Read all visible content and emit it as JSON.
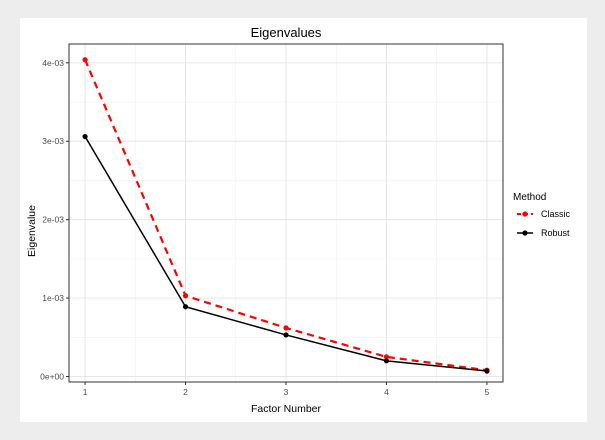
{
  "chart_data": {
    "type": "line",
    "title": "Eigenvalues",
    "xlabel": "Factor Number",
    "ylabel": "Eigenvalue",
    "x": [
      1,
      2,
      3,
      4,
      5
    ],
    "x_ticks": [
      "1",
      "2",
      "3",
      "4",
      "5"
    ],
    "xlim": [
      0.84,
      5.16
    ],
    "y_ticks": [
      0,
      0.001,
      0.002,
      0.003,
      0.004
    ],
    "y_tick_labels": [
      "0e+00",
      "1e-03",
      "2e-03",
      "3e-03",
      "4e-03"
    ],
    "ylim": [
      -7e-05,
      0.00424
    ],
    "grid": true,
    "legend": {
      "title": "Method",
      "position": "right"
    },
    "series": [
      {
        "name": "Classic",
        "color": "#ff0000",
        "line_style": "dashed",
        "values": [
          0.00404,
          0.00103,
          0.00062,
          0.00025,
          8e-05
        ]
      },
      {
        "name": "Robust",
        "color": "#000000",
        "line_style": "solid",
        "values": [
          0.00306,
          0.00089,
          0.00053,
          0.0002,
          7e-05
        ]
      }
    ]
  }
}
